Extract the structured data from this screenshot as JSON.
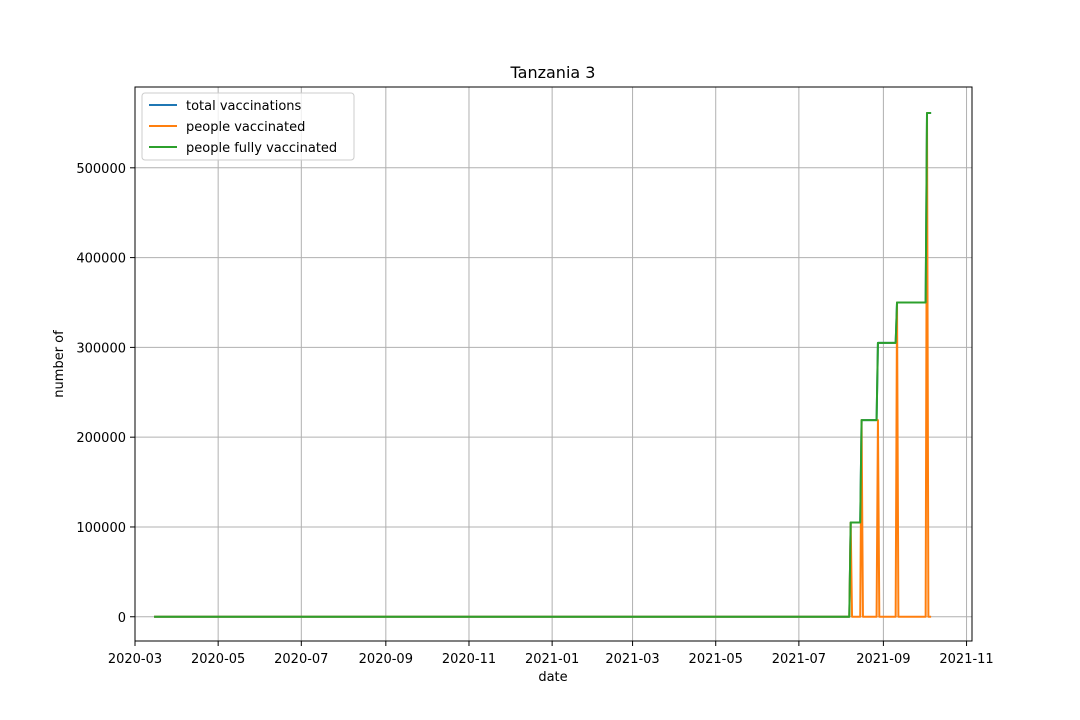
{
  "chart_data": {
    "type": "line",
    "title": "Tanzania 3",
    "xlabel": "date",
    "ylabel": "number of",
    "x_type": "date",
    "xlim": [
      "2020-03-01",
      "2021-11-05"
    ],
    "ylim": [
      -27000,
      590000
    ],
    "x_ticks": [
      "2020-03-01",
      "2020-05-01",
      "2020-07-01",
      "2020-09-01",
      "2020-11-01",
      "2021-01-01",
      "2021-03-01",
      "2021-05-01",
      "2021-07-01",
      "2021-09-01",
      "2021-11-01"
    ],
    "x_tick_labels": [
      "2020-03",
      "2020-05",
      "2020-07",
      "2020-09",
      "2020-11",
      "2021-01",
      "2021-03",
      "2021-05",
      "2021-07",
      "2021-09",
      "2021-11"
    ],
    "y_ticks": [
      0,
      100000,
      200000,
      300000,
      400000,
      500000
    ],
    "y_tick_labels": [
      "0",
      "100000",
      "200000",
      "300000",
      "400000",
      "500000"
    ],
    "grid": true,
    "legend_position": "top-left",
    "series": [
      {
        "name": "total vaccinations",
        "color": "#1f77b4",
        "points": [
          [
            "2020-03-15",
            0
          ],
          [
            "2021-08-07",
            0
          ],
          [
            "2021-08-08",
            105000
          ],
          [
            "2021-08-15",
            105000
          ],
          [
            "2021-08-16",
            219000
          ],
          [
            "2021-08-27",
            219000
          ],
          [
            "2021-08-28",
            305000
          ],
          [
            "2021-09-10",
            305000
          ],
          [
            "2021-09-11",
            350000
          ],
          [
            "2021-10-02",
            350000
          ],
          [
            "2021-10-03",
            561000
          ],
          [
            "2021-10-06",
            561000
          ]
        ]
      },
      {
        "name": "people vaccinated",
        "color": "#ff7f0e",
        "points": [
          [
            "2020-03-15",
            0
          ],
          [
            "2021-08-07",
            0
          ],
          [
            "2021-08-08",
            105000
          ],
          [
            "2021-08-09",
            0
          ],
          [
            "2021-08-15",
            0
          ],
          [
            "2021-08-16",
            219000
          ],
          [
            "2021-08-17",
            0
          ],
          [
            "2021-08-27",
            0
          ],
          [
            "2021-08-28",
            219000
          ],
          [
            "2021-08-29",
            0
          ],
          [
            "2021-09-10",
            0
          ],
          [
            "2021-09-11",
            350000
          ],
          [
            "2021-09-12",
            0
          ],
          [
            "2021-10-02",
            0
          ],
          [
            "2021-10-03",
            561000
          ],
          [
            "2021-10-04",
            0
          ],
          [
            "2021-10-06",
            0
          ]
        ]
      },
      {
        "name": "people fully vaccinated",
        "color": "#2ca02c",
        "points": [
          [
            "2020-03-15",
            0
          ],
          [
            "2021-08-07",
            0
          ],
          [
            "2021-08-08",
            105000
          ],
          [
            "2021-08-15",
            105000
          ],
          [
            "2021-08-16",
            219000
          ],
          [
            "2021-08-27",
            219000
          ],
          [
            "2021-08-28",
            305000
          ],
          [
            "2021-09-10",
            305000
          ],
          [
            "2021-09-11",
            350000
          ],
          [
            "2021-10-02",
            350000
          ],
          [
            "2021-10-03",
            561000
          ],
          [
            "2021-10-06",
            561000
          ]
        ]
      }
    ]
  }
}
